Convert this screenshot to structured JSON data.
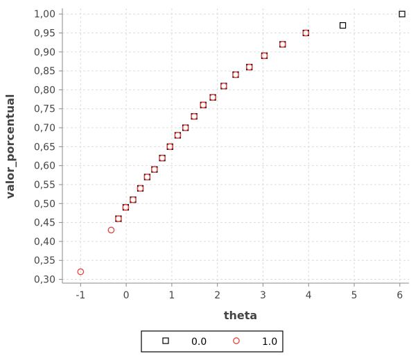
{
  "chart_data": {
    "type": "scatter",
    "title": "",
    "xlabel": "theta",
    "ylabel": "valor_porcentual",
    "xlim": [
      -1.4,
      6.2
    ],
    "ylim": [
      0.29,
      1.015
    ],
    "xticks": [
      -1,
      0,
      1,
      2,
      3,
      4,
      5,
      6
    ],
    "yticks": [
      0.3,
      0.35,
      0.4,
      0.45,
      0.5,
      0.55,
      0.6,
      0.65,
      0.7,
      0.75,
      0.8,
      0.85,
      0.9,
      0.95,
      1.0
    ],
    "xtick_labels": [
      "-1",
      "0",
      "1",
      "2",
      "3",
      "4",
      "5",
      "6"
    ],
    "ytick_labels": [
      "0,30",
      "0,35",
      "0,40",
      "0,45",
      "0,50",
      "0,55",
      "0,60",
      "0,65",
      "0,70",
      "0,75",
      "0,80",
      "0,85",
      "0,90",
      "0,95",
      "1,00"
    ],
    "grid": true,
    "legend_position": "bottom",
    "series": [
      {
        "name": "0.0",
        "marker": "square",
        "color": "#000000",
        "points": [
          [
            -0.17,
            0.46
          ],
          [
            -0.01,
            0.49
          ],
          [
            0.15,
            0.51
          ],
          [
            0.31,
            0.54
          ],
          [
            0.46,
            0.57
          ],
          [
            0.62,
            0.59
          ],
          [
            0.79,
            0.62
          ],
          [
            0.96,
            0.65
          ],
          [
            1.13,
            0.68
          ],
          [
            1.3,
            0.7
          ],
          [
            1.49,
            0.73
          ],
          [
            1.69,
            0.76
          ],
          [
            1.9,
            0.78
          ],
          [
            2.14,
            0.81
          ],
          [
            2.4,
            0.84
          ],
          [
            2.7,
            0.86
          ],
          [
            3.03,
            0.89
          ],
          [
            3.43,
            0.92
          ],
          [
            3.94,
            0.95
          ],
          [
            4.75,
            0.97
          ],
          [
            6.05,
            1.0
          ]
        ]
      },
      {
        "name": "1.0",
        "marker": "circle",
        "color": "#e8403a",
        "points": [
          [
            -1.0,
            0.32
          ],
          [
            -0.33,
            0.43
          ],
          [
            -0.17,
            0.46
          ],
          [
            -0.01,
            0.49
          ],
          [
            0.15,
            0.51
          ],
          [
            0.31,
            0.54
          ],
          [
            0.46,
            0.57
          ],
          [
            0.62,
            0.59
          ],
          [
            0.79,
            0.62
          ],
          [
            0.96,
            0.65
          ],
          [
            1.13,
            0.68
          ],
          [
            1.3,
            0.7
          ],
          [
            1.49,
            0.73
          ],
          [
            1.69,
            0.76
          ],
          [
            1.9,
            0.78
          ],
          [
            2.14,
            0.81
          ],
          [
            2.4,
            0.84
          ],
          [
            2.7,
            0.86
          ],
          [
            3.03,
            0.89
          ],
          [
            3.43,
            0.92
          ],
          [
            3.94,
            0.95
          ]
        ]
      }
    ]
  }
}
